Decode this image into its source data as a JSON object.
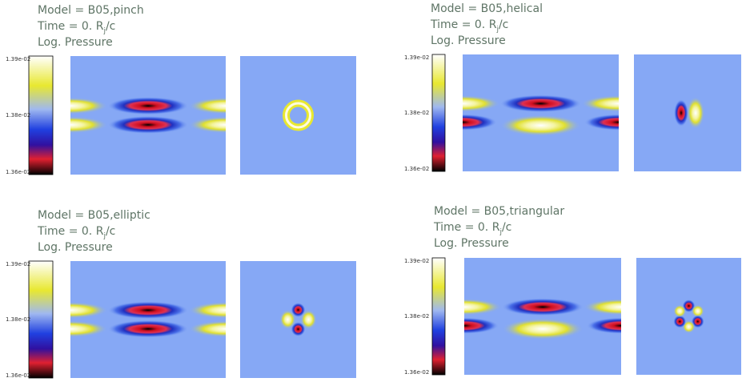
{
  "panels": [
    {
      "model": "Model = B05,pinch",
      "time": {
        "prefix": "Time = 0. R",
        "sub": "j",
        "suffix": "/c"
      },
      "quantity": "Log. Pressure",
      "colorbar": [
        "1.39e-02",
        "1.38e-02",
        "1.36e-02"
      ]
    },
    {
      "model": "Model = B05,helical",
      "time": {
        "prefix": "Time = 0. R",
        "sub": "j",
        "suffix": "/c"
      },
      "quantity": "Log. Pressure",
      "colorbar": [
        "1.39e-02",
        "1.38e-02",
        "1.36e-02"
      ]
    },
    {
      "model": "Model = B05,elliptic",
      "time": {
        "prefix": "Time = 0. R",
        "sub": "j",
        "suffix": "/c"
      },
      "quantity": "Log. Pressure",
      "colorbar": [
        "1.39e-02",
        "1.38e-02",
        "1.36e-02"
      ]
    },
    {
      "model": "Model = B05,triangular",
      "time": {
        "prefix": "Time = 0. R",
        "sub": "j",
        "suffix": "/c"
      },
      "quantity": "Log. Pressure",
      "colorbar": [
        "1.39e-02",
        "1.38e-02",
        "1.36e-02"
      ]
    }
  ]
}
